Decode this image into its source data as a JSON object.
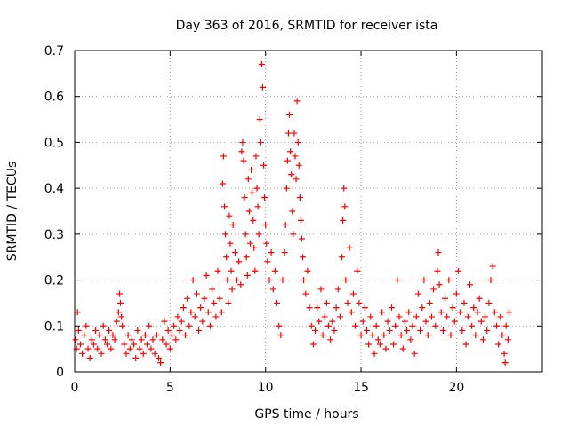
{
  "chart_data": {
    "type": "scatter",
    "title": "Day 363 of 2016, SRMTID for receiver ista",
    "xlabel": "GPS time / hours",
    "ylabel": "SRMTID / TECUs",
    "xlim": [
      0,
      24.5
    ],
    "ylim": [
      0,
      0.7
    ],
    "xticks": [
      0,
      5,
      10,
      15,
      20
    ],
    "yticks": [
      0,
      0.1,
      0.2,
      0.3,
      0.4,
      0.5,
      0.6,
      0.7
    ],
    "xtick_labels": [
      "0",
      "5",
      "10",
      "15",
      "20"
    ],
    "ytick_labels": [
      "0",
      "0.1",
      "0.2",
      "0.3",
      "0.4",
      "0.5",
      "0.6",
      "0.7"
    ],
    "grid": true,
    "marker": "+",
    "marker_color": "#ff0000",
    "series": [
      {
        "name": "SRMTID",
        "points": [
          [
            0.05,
            0.07
          ],
          [
            0.1,
            0.05
          ],
          [
            0.15,
            0.13
          ],
          [
            0.2,
            0.09
          ],
          [
            0.3,
            0.06
          ],
          [
            0.4,
            0.04
          ],
          [
            0.5,
            0.08
          ],
          [
            0.6,
            0.1
          ],
          [
            0.7,
            0.05
          ],
          [
            0.8,
            0.03
          ],
          [
            0.9,
            0.07
          ],
          [
            1.0,
            0.06
          ],
          [
            1.1,
            0.09
          ],
          [
            1.2,
            0.05
          ],
          [
            1.3,
            0.08
          ],
          [
            1.4,
            0.04
          ],
          [
            1.5,
            0.1
          ],
          [
            1.6,
            0.07
          ],
          [
            1.7,
            0.06
          ],
          [
            1.8,
            0.09
          ],
          [
            1.9,
            0.05
          ],
          [
            2.0,
            0.08
          ],
          [
            2.1,
            0.07
          ],
          [
            2.2,
            0.11
          ],
          [
            2.3,
            0.13
          ],
          [
            2.35,
            0.17
          ],
          [
            2.4,
            0.15
          ],
          [
            2.45,
            0.12
          ],
          [
            2.5,
            0.1
          ],
          [
            2.6,
            0.06
          ],
          [
            2.7,
            0.04
          ],
          [
            2.8,
            0.08
          ],
          [
            2.9,
            0.05
          ],
          [
            3.0,
            0.07
          ],
          [
            3.1,
            0.06
          ],
          [
            3.2,
            0.03
          ],
          [
            3.3,
            0.09
          ],
          [
            3.4,
            0.05
          ],
          [
            3.5,
            0.07
          ],
          [
            3.6,
            0.04
          ],
          [
            3.7,
            0.08
          ],
          [
            3.8,
            0.06
          ],
          [
            3.9,
            0.1
          ],
          [
            4.0,
            0.05
          ],
          [
            4.1,
            0.07
          ],
          [
            4.2,
            0.04
          ],
          [
            4.3,
            0.08
          ],
          [
            4.4,
            0.03
          ],
          [
            4.5,
            0.02
          ],
          [
            4.6,
            0.07
          ],
          [
            4.7,
            0.11
          ],
          [
            4.8,
            0.06
          ],
          [
            4.9,
            0.09
          ],
          [
            5.0,
            0.05
          ],
          [
            5.1,
            0.08
          ],
          [
            5.2,
            0.1
          ],
          [
            5.3,
            0.07
          ],
          [
            5.4,
            0.12
          ],
          [
            5.5,
            0.09
          ],
          [
            5.6,
            0.11
          ],
          [
            5.7,
            0.14
          ],
          [
            5.8,
            0.08
          ],
          [
            5.9,
            0.16
          ],
          [
            6.0,
            0.1
          ],
          [
            6.1,
            0.13
          ],
          [
            6.2,
            0.2
          ],
          [
            6.3,
            0.12
          ],
          [
            6.4,
            0.17
          ],
          [
            6.5,
            0.09
          ],
          [
            6.6,
            0.14
          ],
          [
            6.7,
            0.11
          ],
          [
            6.8,
            0.16
          ],
          [
            6.9,
            0.21
          ],
          [
            7.0,
            0.13
          ],
          [
            7.1,
            0.1
          ],
          [
            7.2,
            0.18
          ],
          [
            7.3,
            0.15
          ],
          [
            7.4,
            0.12
          ],
          [
            7.5,
            0.22
          ],
          [
            7.6,
            0.16
          ],
          [
            7.7,
            0.13
          ],
          [
            7.75,
            0.41
          ],
          [
            7.8,
            0.47
          ],
          [
            7.85,
            0.36
          ],
          [
            7.9,
            0.3
          ],
          [
            7.95,
            0.25
          ],
          [
            8.0,
            0.2
          ],
          [
            8.05,
            0.15
          ],
          [
            8.1,
            0.34
          ],
          [
            8.15,
            0.28
          ],
          [
            8.2,
            0.22
          ],
          [
            8.25,
            0.18
          ],
          [
            8.3,
            0.32
          ],
          [
            8.4,
            0.26
          ],
          [
            8.5,
            0.2
          ],
          [
            8.6,
            0.24
          ],
          [
            8.7,
            0.19
          ],
          [
            8.75,
            0.48
          ],
          [
            8.8,
            0.5
          ],
          [
            8.85,
            0.46
          ],
          [
            8.9,
            0.38
          ],
          [
            8.95,
            0.3
          ],
          [
            9.0,
            0.25
          ],
          [
            9.05,
            0.21
          ],
          [
            9.1,
            0.42
          ],
          [
            9.15,
            0.35
          ],
          [
            9.2,
            0.28
          ],
          [
            9.25,
            0.44
          ],
          [
            9.3,
            0.39
          ],
          [
            9.35,
            0.33
          ],
          [
            9.4,
            0.27
          ],
          [
            9.45,
            0.22
          ],
          [
            9.5,
            0.47
          ],
          [
            9.55,
            0.4
          ],
          [
            9.6,
            0.36
          ],
          [
            9.65,
            0.3
          ],
          [
            9.7,
            0.55
          ],
          [
            9.75,
            0.5
          ],
          [
            9.8,
            0.67
          ],
          [
            9.85,
            0.62
          ],
          [
            9.9,
            0.45
          ],
          [
            9.95,
            0.38
          ],
          [
            10.0,
            0.32
          ],
          [
            10.05,
            0.28
          ],
          [
            10.1,
            0.24
          ],
          [
            10.2,
            0.2
          ],
          [
            10.3,
            0.26
          ],
          [
            10.4,
            0.18
          ],
          [
            10.5,
            0.22
          ],
          [
            10.6,
            0.15
          ],
          [
            10.7,
            0.1
          ],
          [
            10.8,
            0.08
          ],
          [
            10.9,
            0.2
          ],
          [
            11.0,
            0.26
          ],
          [
            11.05,
            0.32
          ],
          [
            11.1,
            0.4
          ],
          [
            11.15,
            0.46
          ],
          [
            11.2,
            0.52
          ],
          [
            11.25,
            0.56
          ],
          [
            11.3,
            0.48
          ],
          [
            11.35,
            0.43
          ],
          [
            11.4,
            0.35
          ],
          [
            11.45,
            0.3
          ],
          [
            11.5,
            0.52
          ],
          [
            11.55,
            0.47
          ],
          [
            11.6,
            0.42
          ],
          [
            11.65,
            0.59
          ],
          [
            11.7,
            0.5
          ],
          [
            11.75,
            0.45
          ],
          [
            11.8,
            0.38
          ],
          [
            11.85,
            0.33
          ],
          [
            11.9,
            0.29
          ],
          [
            11.95,
            0.25
          ],
          [
            12.0,
            0.2
          ],
          [
            12.1,
            0.17
          ],
          [
            12.2,
            0.22
          ],
          [
            12.3,
            0.14
          ],
          [
            12.4,
            0.1
          ],
          [
            12.5,
            0.06
          ],
          [
            12.6,
            0.09
          ],
          [
            12.7,
            0.14
          ],
          [
            12.8,
            0.11
          ],
          [
            12.9,
            0.18
          ],
          [
            13.0,
            0.08
          ],
          [
            13.1,
            0.12
          ],
          [
            13.2,
            0.15
          ],
          [
            13.3,
            0.1
          ],
          [
            13.4,
            0.07
          ],
          [
            13.5,
            0.11
          ],
          [
            13.6,
            0.09
          ],
          [
            13.7,
            0.14
          ],
          [
            13.8,
            0.18
          ],
          [
            13.9,
            0.12
          ],
          [
            14.0,
            0.25
          ],
          [
            14.05,
            0.33
          ],
          [
            14.1,
            0.4
          ],
          [
            14.15,
            0.36
          ],
          [
            14.2,
            0.2
          ],
          [
            14.3,
            0.15
          ],
          [
            14.4,
            0.27
          ],
          [
            14.5,
            0.13
          ],
          [
            14.6,
            0.17
          ],
          [
            14.7,
            0.1
          ],
          [
            14.8,
            0.22
          ],
          [
            14.9,
            0.15
          ],
          [
            15.0,
            0.08
          ],
          [
            15.1,
            0.11
          ],
          [
            15.2,
            0.14
          ],
          [
            15.3,
            0.09
          ],
          [
            15.4,
            0.06
          ],
          [
            15.5,
            0.12
          ],
          [
            15.6,
            0.08
          ],
          [
            15.7,
            0.04
          ],
          [
            15.8,
            0.1
          ],
          [
            15.9,
            0.07
          ],
          [
            16.0,
            0.06
          ],
          [
            16.1,
            0.13
          ],
          [
            16.2,
            0.08
          ],
          [
            16.3,
            0.05
          ],
          [
            16.4,
            0.11
          ],
          [
            16.5,
            0.09
          ],
          [
            16.6,
            0.14
          ],
          [
            16.7,
            0.06
          ],
          [
            16.8,
            0.1
          ],
          [
            16.9,
            0.2
          ],
          [
            17.0,
            0.12
          ],
          [
            17.1,
            0.08
          ],
          [
            17.2,
            0.05
          ],
          [
            17.3,
            0.11
          ],
          [
            17.4,
            0.09
          ],
          [
            17.5,
            0.13
          ],
          [
            17.6,
            0.07
          ],
          [
            17.7,
            0.1
          ],
          [
            17.8,
            0.04
          ],
          [
            17.9,
            0.12
          ],
          [
            18.0,
            0.17
          ],
          [
            18.1,
            0.09
          ],
          [
            18.2,
            0.14
          ],
          [
            18.3,
            0.2
          ],
          [
            18.4,
            0.11
          ],
          [
            18.5,
            0.08
          ],
          [
            18.6,
            0.15
          ],
          [
            18.7,
            0.12
          ],
          [
            18.8,
            0.18
          ],
          [
            18.9,
            0.1
          ],
          [
            19.0,
            0.22
          ],
          [
            19.05,
            0.26
          ],
          [
            19.1,
            0.19
          ],
          [
            19.2,
            0.13
          ],
          [
            19.3,
            0.09
          ],
          [
            19.4,
            0.16
          ],
          [
            19.5,
            0.12
          ],
          [
            19.6,
            0.2
          ],
          [
            19.7,
            0.08
          ],
          [
            19.8,
            0.14
          ],
          [
            19.9,
            0.11
          ],
          [
            20.0,
            0.17
          ],
          [
            20.1,
            0.22
          ],
          [
            20.2,
            0.13
          ],
          [
            20.3,
            0.09
          ],
          [
            20.4,
            0.15
          ],
          [
            20.5,
            0.06
          ],
          [
            20.6,
            0.12
          ],
          [
            20.7,
            0.19
          ],
          [
            20.8,
            0.1
          ],
          [
            20.9,
            0.14
          ],
          [
            21.0,
            0.08
          ],
          [
            21.1,
            0.13
          ],
          [
            21.2,
            0.16
          ],
          [
            21.3,
            0.11
          ],
          [
            21.4,
            0.07
          ],
          [
            21.5,
            0.12
          ],
          [
            21.6,
            0.09
          ],
          [
            21.7,
            0.15
          ],
          [
            21.8,
            0.2
          ],
          [
            21.9,
            0.23
          ],
          [
            22.0,
            0.13
          ],
          [
            22.1,
            0.1
          ],
          [
            22.2,
            0.06
          ],
          [
            22.3,
            0.12
          ],
          [
            22.4,
            0.08
          ],
          [
            22.5,
            0.04
          ],
          [
            22.55,
            0.02
          ],
          [
            22.6,
            0.1
          ],
          [
            22.7,
            0.07
          ],
          [
            22.75,
            0.13
          ]
        ]
      }
    ]
  }
}
